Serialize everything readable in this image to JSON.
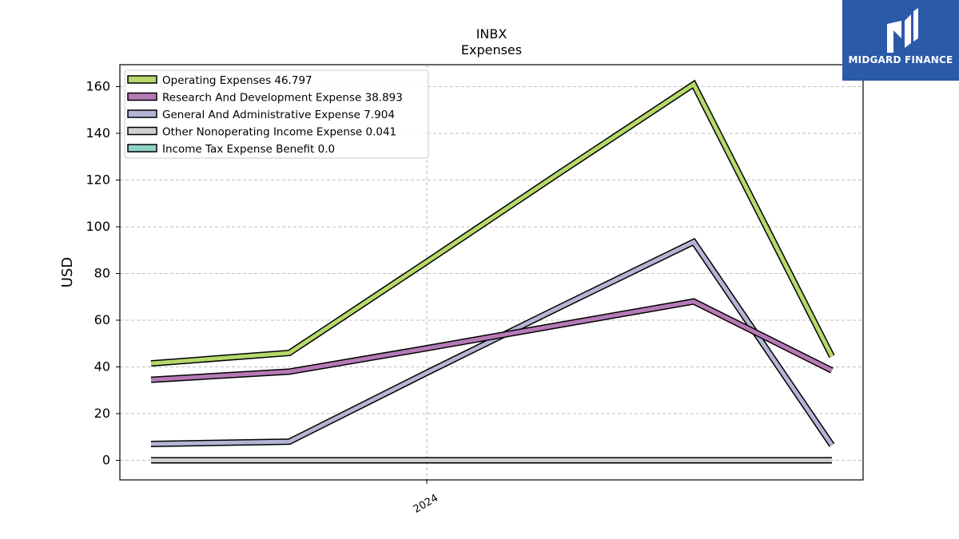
{
  "chart_data": {
    "type": "line",
    "title": "INBX",
    "subtitle": "Expenses",
    "ylabel": "USD",
    "xlabel": "",
    "ylim": [
      -8,
      170
    ],
    "yticks": [
      0,
      20,
      40,
      60,
      80,
      100,
      120,
      140,
      160
    ],
    "xtick_labels": [
      "2024"
    ],
    "grid": true,
    "legend_placement": "top-left",
    "x_points": 6,
    "series": [
      {
        "name": "Operating Expenses",
        "legend_value": "46.797",
        "color": "#b5d96a",
        "values": [
          41.5,
          46.0,
          null,
          null,
          161.0,
          44.5
        ],
        "path": [
          [
            0,
            41.5
          ],
          [
            1,
            46.0
          ],
          [
            2,
            85.0
          ],
          [
            3,
            123.0
          ],
          [
            4,
            161.0
          ],
          [
            5,
            44.5
          ]
        ]
      },
      {
        "name": "Research And Development Expense",
        "legend_value": "38.893",
        "color": "#b57ab6",
        "path": [
          [
            0,
            34.5
          ],
          [
            1,
            38.0
          ],
          [
            2,
            48.0
          ],
          [
            3,
            58.0
          ],
          [
            4,
            68.0
          ],
          [
            5,
            38.5
          ]
        ]
      },
      {
        "name": "General And Administrative Expense",
        "legend_value": "7.904",
        "color": "#b4b4d6",
        "path": [
          [
            0,
            7.0
          ],
          [
            1,
            8.0
          ],
          [
            2,
            37.5
          ],
          [
            3,
            65.5
          ],
          [
            4,
            93.5
          ],
          [
            5,
            6.5
          ]
        ]
      },
      {
        "name": "Other Nonoperating Income Expense",
        "legend_value": "0.041",
        "color": "#d0d0d0",
        "path": [
          [
            0,
            0.04
          ],
          [
            1,
            0.04
          ],
          [
            2,
            0.04
          ],
          [
            3,
            0.04
          ],
          [
            4,
            0.04
          ],
          [
            5,
            0.04
          ]
        ]
      },
      {
        "name": "Income Tax Expense Benefit",
        "legend_value": "0.0",
        "color": "#8fd3c8",
        "path": [
          [
            0,
            0.0
          ],
          [
            1,
            0.0
          ],
          [
            2,
            0.0
          ],
          [
            3,
            0.0
          ],
          [
            4,
            0.0
          ],
          [
            5,
            0.0
          ]
        ]
      }
    ]
  },
  "logo": {
    "text": "MIDGARD FINANCE",
    "bg_color": "#2a5aa8"
  }
}
